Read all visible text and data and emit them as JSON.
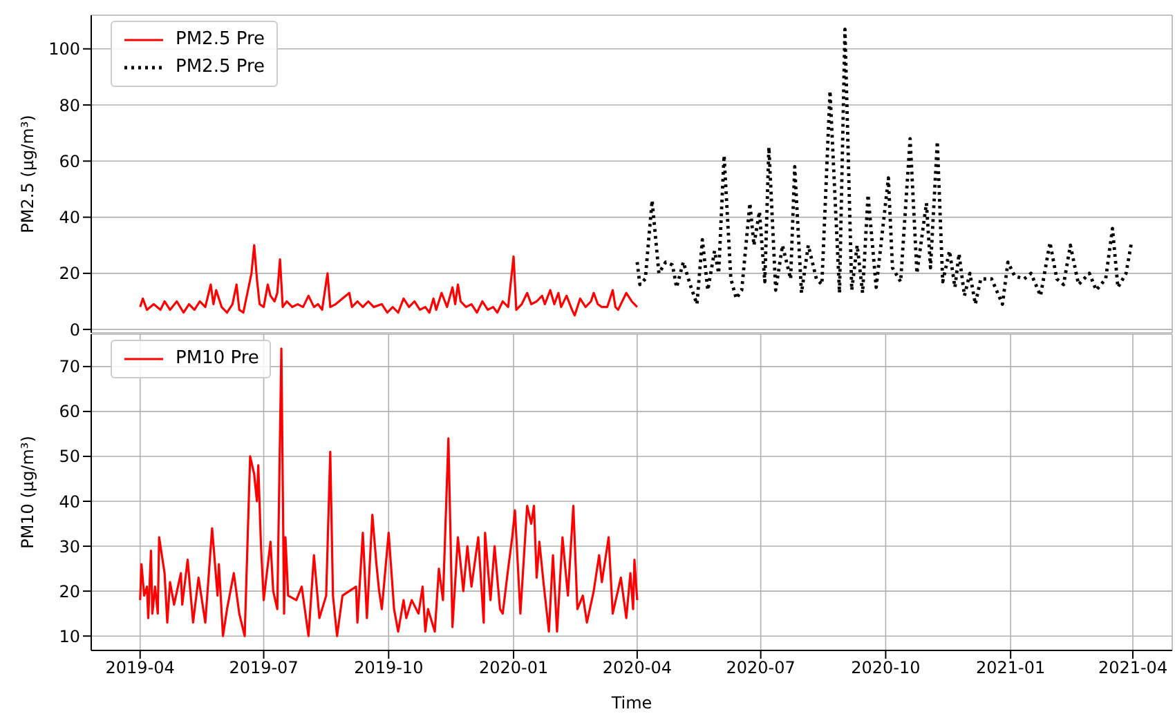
{
  "chart_data": [
    {
      "type": "line",
      "ylabel": "PM2.5 (μg/m³)",
      "xlim": [
        "2019-02-24",
        "2021-04-30"
      ],
      "xticks": [
        "2019-04",
        "2019-07",
        "2019-10",
        "2020-01",
        "2020-04",
        "2020-07",
        "2020-10",
        "2021-01",
        "2021-04"
      ],
      "ylim": [
        -1.2,
        112
      ],
      "yticks": [
        0,
        20,
        40,
        60,
        80,
        100
      ],
      "grid": true,
      "legend": "top left",
      "tick_labels": "y",
      "series": [
        {
          "name": "PM2.5 Pre",
          "color": "#ff0000",
          "line_style": "solid",
          "x": [
            "2019-04-01",
            "2019-04-03",
            "2019-04-06",
            "2019-04-11",
            "2019-04-16",
            "2019-04-19",
            "2019-04-23",
            "2019-04-28",
            "2019-05-03",
            "2019-05-07",
            "2019-05-11",
            "2019-05-15",
            "2019-05-19",
            "2019-05-23",
            "2019-05-25",
            "2019-05-27",
            "2019-05-31",
            "2019-06-04",
            "2019-06-08",
            "2019-06-11",
            "2019-06-13",
            "2019-06-16",
            "2019-06-19",
            "2019-06-22",
            "2019-06-24",
            "2019-06-26",
            "2019-06-28",
            "2019-07-01",
            "2019-07-04",
            "2019-07-06",
            "2019-07-09",
            "2019-07-11",
            "2019-07-13",
            "2019-07-15",
            "2019-07-18",
            "2019-07-22",
            "2019-07-26",
            "2019-07-30",
            "2019-08-03",
            "2019-08-07",
            "2019-08-10",
            "2019-08-13",
            "2019-08-17",
            "2019-08-19",
            "2019-08-23",
            "2019-09-02",
            "2019-09-04",
            "2019-09-08",
            "2019-09-12",
            "2019-09-16",
            "2019-09-20",
            "2019-09-26",
            "2019-09-30",
            "2019-10-04",
            "2019-10-08",
            "2019-10-12",
            "2019-10-16",
            "2019-10-20",
            "2019-10-24",
            "2019-10-28",
            "2019-10-31",
            "2019-11-03",
            "2019-11-05",
            "2019-11-09",
            "2019-11-13",
            "2019-11-17",
            "2019-11-19",
            "2019-11-21",
            "2019-11-23",
            "2019-11-27",
            "2019-12-01",
            "2019-12-05",
            "2019-12-09",
            "2019-12-13",
            "2019-12-17",
            "2019-12-20",
            "2019-12-24",
            "2019-12-28",
            "2020-01-01",
            "2020-01-03",
            "2020-01-07",
            "2020-01-11",
            "2020-01-14",
            "2020-01-18",
            "2020-01-22",
            "2020-01-24",
            "2020-01-28",
            "2020-01-31",
            "2020-02-03",
            "2020-02-05",
            "2020-02-09",
            "2020-02-13",
            "2020-02-15",
            "2020-02-19",
            "2020-02-23",
            "2020-02-27",
            "2020-02-29",
            "2020-03-03",
            "2020-03-06",
            "2020-03-10",
            "2020-03-14",
            "2020-03-16",
            "2020-03-18",
            "2020-03-24",
            "2020-03-28",
            "2020-04-01"
          ],
          "values": [
            8,
            11,
            7,
            9,
            7,
            10,
            7,
            10,
            6,
            9,
            7,
            10,
            8,
            16,
            9,
            14,
            8,
            6,
            9,
            16,
            7,
            6,
            13,
            20,
            30,
            18,
            9,
            8,
            16,
            12,
            10,
            13,
            25,
            8,
            10,
            8,
            9,
            8,
            12,
            8,
            9,
            7,
            20,
            8,
            9,
            13,
            8,
            10,
            8,
            10,
            8,
            9,
            6,
            8,
            6,
            11,
            8,
            10,
            7,
            8,
            6,
            11,
            7,
            13,
            8,
            15,
            9,
            16,
            10,
            8,
            9,
            6,
            10,
            7,
            8,
            6,
            10,
            8,
            26,
            7,
            9,
            13,
            9,
            10,
            12,
            9,
            14,
            9,
            13,
            8,
            12,
            7,
            5,
            11,
            8,
            10,
            13,
            9,
            8,
            8,
            14,
            8,
            7,
            13,
            10,
            8
          ]
        },
        {
          "name": "PM2.5 Pre",
          "color": "#000000",
          "line_style": "dotted",
          "x": [
            "2020-04-01",
            "2020-04-03",
            "2020-04-07",
            "2020-04-12",
            "2020-04-17",
            "2020-04-22",
            "2020-04-27",
            "2020-04-30",
            "2020-05-05",
            "2020-05-10",
            "2020-05-15",
            "2020-05-19",
            "2020-05-23",
            "2020-05-28",
            "2020-05-31",
            "2020-06-04",
            "2020-06-09",
            "2020-06-13",
            "2020-06-17",
            "2020-06-23",
            "2020-06-26",
            "2020-06-30",
            "2020-07-04",
            "2020-07-07",
            "2020-07-12",
            "2020-07-17",
            "2020-07-23",
            "2020-07-26",
            "2020-07-31",
            "2020-08-05",
            "2020-08-11",
            "2020-08-15",
            "2020-08-21",
            "2020-08-28",
            "2020-09-01",
            "2020-09-06",
            "2020-09-10",
            "2020-09-14",
            "2020-09-18",
            "2020-09-24",
            "2020-10-03",
            "2020-10-06",
            "2020-10-12",
            "2020-10-19",
            "2020-10-24",
            "2020-10-31",
            "2020-11-03",
            "2020-11-08",
            "2020-11-12",
            "2020-11-17",
            "2020-11-21",
            "2020-11-24",
            "2020-11-28",
            "2020-12-02",
            "2020-12-06",
            "2020-12-10",
            "2020-12-18",
            "2020-12-26",
            "2020-12-30",
            "2021-01-04",
            "2021-01-11",
            "2021-01-16",
            "2021-01-23",
            "2021-01-30",
            "2021-02-04",
            "2021-02-09",
            "2021-02-14",
            "2021-02-20",
            "2021-02-28",
            "2021-03-05",
            "2021-03-12",
            "2021-03-17",
            "2021-03-21",
            "2021-03-27",
            "2021-03-31"
          ],
          "values": [
            24,
            16,
            18,
            46,
            20,
            24,
            23,
            15,
            24,
            16,
            9,
            32,
            14,
            28,
            20,
            62,
            18,
            11,
            14,
            45,
            30,
            42,
            17,
            65,
            14,
            30,
            18,
            58,
            13,
            30,
            18,
            16,
            85,
            13,
            107,
            14,
            30,
            13,
            48,
            15,
            54,
            22,
            17,
            68,
            20,
            45,
            22,
            67,
            17,
            28,
            15,
            27,
            12,
            20,
            9,
            18,
            18,
            9,
            24,
            19,
            18,
            20,
            12,
            31,
            18,
            16,
            30,
            16,
            20,
            14,
            18,
            36,
            15,
            20,
            31
          ]
        }
      ]
    },
    {
      "type": "line",
      "xlabel": "Time",
      "ylabel": "PM10 (μg/m³)",
      "xlim": [
        "2019-02-24",
        "2021-04-30"
      ],
      "xticks": [
        "2019-04",
        "2019-07",
        "2019-10",
        "2020-01",
        "2020-04",
        "2020-07",
        "2020-10",
        "2021-01",
        "2021-04"
      ],
      "ylim": [
        6.8,
        77.2
      ],
      "yticks": [
        10,
        20,
        30,
        40,
        50,
        60,
        70
      ],
      "grid": true,
      "legend": "top left",
      "series": [
        {
          "name": "PM10 Pre",
          "color": "#ff0000",
          "line_style": "solid",
          "x": [
            "2019-04-01",
            "2019-04-02",
            "2019-04-04",
            "2019-04-06",
            "2019-04-07",
            "2019-04-09",
            "2019-04-10",
            "2019-04-12",
            "2019-04-14",
            "2019-04-15",
            "2019-04-19",
            "2019-04-21",
            "2019-04-23",
            "2019-04-26",
            "2019-05-01",
            "2019-05-02",
            "2019-05-06",
            "2019-05-10",
            "2019-05-14",
            "2019-05-19",
            "2019-05-24",
            "2019-05-28",
            "2019-05-29",
            "2019-06-01",
            "2019-06-04",
            "2019-06-09",
            "2019-06-13",
            "2019-06-17",
            "2019-06-21",
            "2019-06-24",
            "2019-06-26",
            "2019-06-27",
            "2019-06-29",
            "2019-07-01",
            "2019-07-06",
            "2019-07-08",
            "2019-07-11",
            "2019-07-14",
            "2019-07-16",
            "2019-07-17",
            "2019-07-19",
            "2019-07-25",
            "2019-07-29",
            "2019-08-03",
            "2019-08-07",
            "2019-08-11",
            "2019-08-16",
            "2019-08-19",
            "2019-08-21",
            "2019-08-24",
            "2019-08-28",
            "2019-09-07",
            "2019-09-08",
            "2019-09-12",
            "2019-09-15",
            "2019-09-19",
            "2019-09-22",
            "2019-09-24",
            "2019-09-26",
            "2019-10-01",
            "2019-10-05",
            "2019-10-08",
            "2019-10-12",
            "2019-10-14",
            "2019-10-18",
            "2019-10-23",
            "2019-10-26",
            "2019-10-28",
            "2019-10-30",
            "2019-11-04",
            "2019-11-07",
            "2019-11-10",
            "2019-11-14",
            "2019-11-17",
            "2019-11-21",
            "2019-11-25",
            "2019-11-28",
            "2019-12-01",
            "2019-12-06",
            "2019-12-10",
            "2019-12-11",
            "2019-12-15",
            "2019-12-18",
            "2019-12-22",
            "2019-12-24",
            "2019-12-28",
            "2019-12-31",
            "2020-01-02",
            "2020-01-06",
            "2020-01-11",
            "2020-01-14",
            "2020-01-16",
            "2020-01-18",
            "2020-01-20",
            "2020-01-23",
            "2020-01-27",
            "2020-01-30",
            "2020-02-02",
            "2020-02-06",
            "2020-02-10",
            "2020-02-14",
            "2020-02-17",
            "2020-02-21",
            "2020-02-24",
            "2020-02-29",
            "2020-03-04",
            "2020-03-06",
            "2020-03-11",
            "2020-03-14",
            "2020-03-20",
            "2020-03-24",
            "2020-03-27",
            "2020-03-29",
            "2020-03-30",
            "2020-04-01"
          ],
          "values": [
            18,
            26,
            19,
            21,
            14,
            29,
            15,
            21,
            15,
            32,
            24,
            13,
            22,
            17,
            24,
            17,
            27,
            13,
            23,
            13,
            34,
            19,
            26,
            10,
            16,
            24,
            15,
            10,
            50,
            46,
            40,
            48,
            30,
            18,
            31,
            20,
            16,
            74,
            15,
            32,
            19,
            18,
            21,
            10,
            28,
            14,
            19,
            51,
            19,
            10,
            19,
            21,
            13,
            33,
            14,
            37,
            26,
            20,
            16,
            33,
            16,
            11,
            18,
            14,
            18,
            15,
            21,
            11,
            16,
            11,
            25,
            18,
            54,
            12,
            32,
            20,
            30,
            21,
            32,
            13,
            33,
            18,
            30,
            16,
            15,
            25,
            32,
            38,
            15,
            39,
            35,
            39,
            23,
            31,
            22,
            11,
            28,
            11,
            32,
            19,
            39,
            16,
            19,
            13,
            20,
            28,
            22,
            32,
            15,
            23,
            14,
            24,
            16,
            27,
            18
          ]
        }
      ]
    }
  ]
}
